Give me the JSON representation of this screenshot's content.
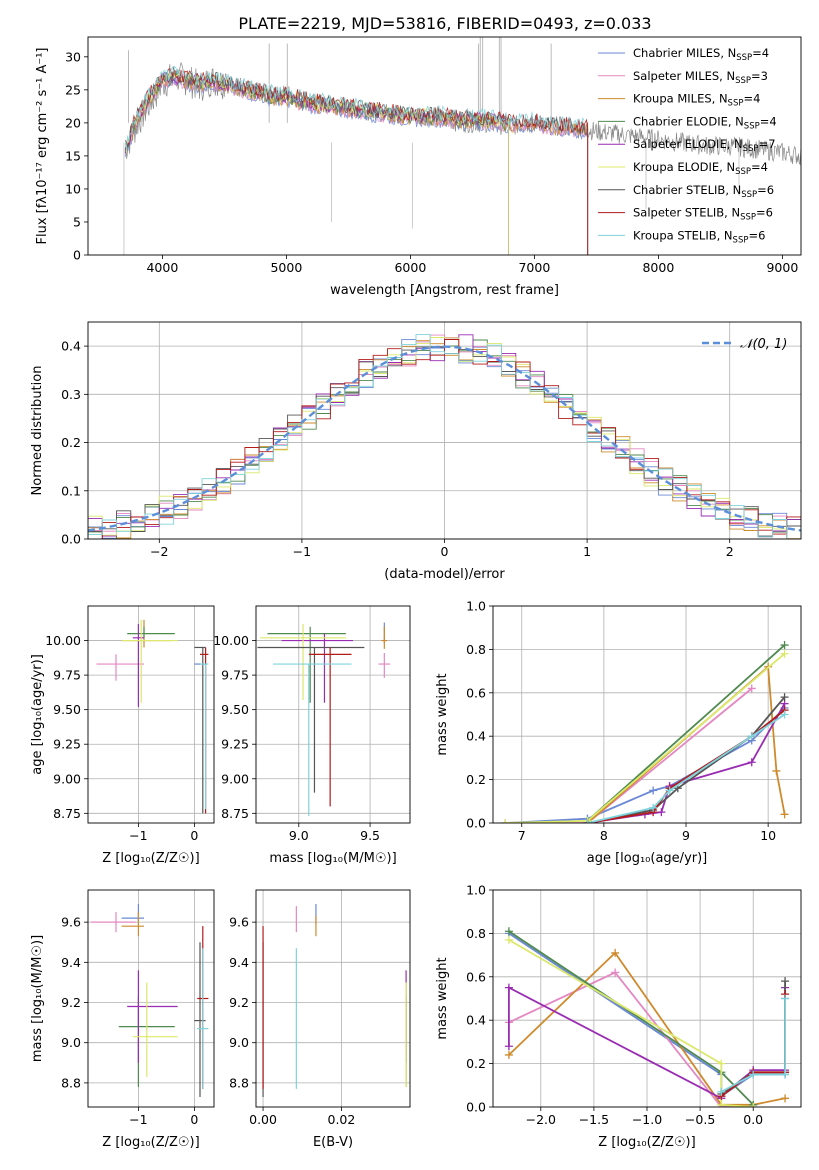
{
  "figure": {
    "title": "PLATE=2219, MJD=53816, FIBERID=0493, z=0.033"
  },
  "series": [
    {
      "name": "Chabrier MILES",
      "nssp": "4",
      "color": "#6a88d6"
    },
    {
      "name": "Salpeter MILES",
      "nssp": "3",
      "color": "#e487c2"
    },
    {
      "name": "Kroupa MILES",
      "nssp": "4",
      "color": "#cf8a2c"
    },
    {
      "name": "Chabrier ELODIE",
      "nssp": "4",
      "color": "#4f8a4f"
    },
    {
      "name": "Salpeter ELODIE",
      "nssp": "7",
      "color": "#9a2cb3"
    },
    {
      "name": "Kroupa ELODIE",
      "nssp": "4",
      "color": "#dbe86a"
    },
    {
      "name": "Chabrier STELIB",
      "nssp": "6",
      "color": "#555555"
    },
    {
      "name": "Salpeter STELIB",
      "nssp": "6",
      "color": "#b31b1b"
    },
    {
      "name": "Kroupa STELIB",
      "nssp": "6",
      "color": "#7fd3dc"
    }
  ],
  "chart_data": [
    {
      "id": "spectrum",
      "type": "line",
      "xlabel": "wavelength [Angstrom, rest frame]",
      "ylabel": "Flux [fλ10⁻¹⁷ erg cm⁻² s⁻¹ A⁻¹]",
      "xlim": [
        3400,
        9150
      ],
      "ylim": [
        0,
        33
      ],
      "xticks": [
        4000,
        5000,
        6000,
        7000,
        8000,
        9000
      ],
      "yticks": [
        0,
        5,
        10,
        15,
        20,
        25,
        30
      ],
      "data_wavelength": [
        3700,
        3800,
        3900,
        4000,
        4100,
        4200,
        4300,
        4400,
        4500,
        4600,
        4700,
        4800,
        4900,
        5000,
        5200,
        5400,
        5600,
        5800,
        6000,
        6200,
        6400,
        6600,
        6800,
        7000,
        7200,
        7400,
        7600,
        7800,
        8000,
        8200,
        8400,
        8600,
        8800,
        9000,
        9150
      ],
      "data_flux": [
        16,
        20,
        23,
        26,
        27,
        26.5,
        25.5,
        26.5,
        26,
        25.5,
        25,
        24.5,
        24,
        24.5,
        23,
        22.5,
        22,
        21.5,
        21,
        21,
        20,
        20,
        19.5,
        20,
        19.5,
        19,
        18.5,
        18,
        17.5,
        17,
        16.5,
        16.5,
        16,
        15.5,
        15
      ],
      "model_wavelength": [
        3700,
        3800,
        3900,
        4000,
        4100,
        4200,
        4300,
        4400,
        4500,
        4600,
        4700,
        4800,
        4900,
        5000,
        5200,
        5400,
        5600,
        5800,
        6000,
        6200,
        6400,
        6600,
        6800,
        7000,
        7200,
        7400
      ],
      "model_flux": [
        16,
        21,
        24,
        26.5,
        27,
        26.5,
        26,
        26.5,
        26,
        25.5,
        25,
        24.5,
        24,
        24,
        23,
        22.5,
        22,
        21.5,
        21,
        21,
        20.5,
        20.5,
        20,
        20,
        19.5,
        19
      ],
      "model_cutoffs": [
        7430,
        7430,
        7430,
        6790,
        6790,
        6790,
        7430,
        7430,
        9100
      ]
    },
    {
      "id": "residuals",
      "type": "histogram",
      "xlabel": "(data-model)/error",
      "ylabel": "Normed distribution",
      "xlim": [
        -2.5,
        2.5
      ],
      "ylim": [
        0,
        0.45
      ],
      "xticks": [
        -2,
        -1,
        0,
        1,
        2
      ],
      "yticks": [
        0.0,
        0.1,
        0.2,
        0.3,
        0.4
      ],
      "reference_label": "𝒩(0, 1)",
      "bin_width": 0.1
    },
    {
      "id": "age_vs_Z",
      "type": "errorbar",
      "xlabel": "Z [log₁₀(Z/Z☉)]",
      "ylabel": "age  [log₁₀(age/yr)]",
      "xlim": [
        -1.9,
        0.35
      ],
      "ylim": [
        8.68,
        10.25
      ],
      "xticks": [
        -1,
        0
      ],
      "yticks": [
        8.75,
        9.0,
        9.25,
        9.5,
        9.75,
        10.0
      ],
      "points": [
        {
          "s": 0,
          "x": 0.1,
          "y": 9.83,
          "xerr": [
            0.1,
            0.1
          ],
          "yerr": [
            0.0,
            0.0
          ]
        },
        {
          "s": 1,
          "x": -1.4,
          "y": 9.83,
          "xerr": [
            0.35,
            0.5
          ],
          "yerr": [
            0.12,
            0.07
          ]
        },
        {
          "s": 2,
          "x": -0.9,
          "y": 10.0,
          "xerr": [
            0.4,
            0.5
          ],
          "yerr": [
            0.05,
            0.15
          ]
        },
        {
          "s": 3,
          "x": -0.9,
          "y": 10.05,
          "xerr": [
            0.3,
            0.55
          ],
          "yerr": [
            0.03,
            0.05
          ]
        },
        {
          "s": 4,
          "x": -1.0,
          "y": 10.02,
          "xerr": [
            0.1,
            0.1
          ],
          "yerr": [
            0.5,
            0.1
          ]
        },
        {
          "s": 5,
          "x": -0.95,
          "y": 10.0,
          "xerr": [
            0.35,
            0.65
          ],
          "yerr": [
            0.45,
            0.15
          ]
        },
        {
          "s": 6,
          "x": 0.15,
          "y": 9.95,
          "xerr": [
            0.15,
            0.05
          ],
          "yerr": [
            1.2,
            0.0
          ]
        },
        {
          "s": 7,
          "x": 0.2,
          "y": 9.9,
          "xerr": [
            0.1,
            0.05
          ],
          "yerr": [
            1.15,
            0.05
          ]
        },
        {
          "s": 8,
          "x": 0.2,
          "y": 9.83,
          "xerr": [
            0.1,
            0.05
          ],
          "yerr": [
            1.05,
            0.0
          ]
        }
      ]
    },
    {
      "id": "age_vs_mass",
      "type": "errorbar",
      "xlabel": "mass [log₁₀(M/M☉)]",
      "ylabel": "",
      "xlim": [
        8.7,
        9.78
      ],
      "ylim": [
        8.68,
        10.25
      ],
      "xticks": [
        9.0,
        9.5
      ],
      "yticks": [
        8.75,
        9.0,
        9.25,
        9.5,
        9.75,
        10.0
      ],
      "points": [
        {
          "s": 0,
          "x": 9.6,
          "y": 10.08,
          "xerr": [
            0.0,
            0.0
          ],
          "yerr": [
            0.1,
            0.05
          ]
        },
        {
          "s": 1,
          "x": 9.6,
          "y": 9.83,
          "xerr": [
            0.04,
            0.04
          ],
          "yerr": [
            0.1,
            0.08
          ]
        },
        {
          "s": 2,
          "x": 9.6,
          "y": 10.0,
          "xerr": [
            0.02,
            0.02
          ],
          "yerr": [
            0.06,
            0.1
          ]
        },
        {
          "s": 3,
          "x": 9.08,
          "y": 10.05,
          "xerr": [
            0.3,
            0.25
          ],
          "yerr": [
            0.5,
            0.05
          ]
        },
        {
          "s": 4,
          "x": 9.18,
          "y": 10.0,
          "xerr": [
            0.3,
            0.2
          ],
          "yerr": [
            0.45,
            0.05
          ]
        },
        {
          "s": 5,
          "x": 9.03,
          "y": 10.02,
          "xerr": [
            0.3,
            0.3
          ],
          "yerr": [
            0.45,
            0.1
          ]
        },
        {
          "s": 6,
          "x": 9.11,
          "y": 9.95,
          "xerr": [
            0.4,
            0.35
          ],
          "yerr": [
            1.05,
            0.0
          ]
        },
        {
          "s": 7,
          "x": 9.22,
          "y": 9.9,
          "xerr": [
            0.15,
            0.15
          ],
          "yerr": [
            1.1,
            0.05
          ]
        },
        {
          "s": 8,
          "x": 9.07,
          "y": 9.83,
          "xerr": [
            0.25,
            0.3
          ],
          "yerr": [
            1.1,
            0.0
          ]
        }
      ]
    },
    {
      "id": "weight_vs_age",
      "type": "line",
      "xlabel": "age  [log₁₀(age/yr)]",
      "ylabel": "mass weight",
      "xlim": [
        6.65,
        10.4
      ],
      "ylim": [
        0,
        1.0
      ],
      "xticks": [
        7,
        8,
        9,
        10
      ],
      "yticks": [
        0.0,
        0.2,
        0.4,
        0.6,
        0.8,
        1.0
      ],
      "lines": [
        {
          "s": 0,
          "x": [
            6.8,
            7.8,
            8.6,
            8.8,
            9.8,
            10.2
          ],
          "y": [
            0.0,
            0.02,
            0.15,
            0.17,
            0.38,
            0.53
          ]
        },
        {
          "s": 1,
          "x": [
            6.8,
            7.8,
            9.8
          ],
          "y": [
            0.0,
            0.0,
            0.62
          ]
        },
        {
          "s": 2,
          "x": [
            7.8,
            10.0,
            10.1,
            10.2
          ],
          "y": [
            0.0,
            0.72,
            0.24,
            0.04
          ]
        },
        {
          "s": 3,
          "x": [
            7.8,
            10.2
          ],
          "y": [
            0.01,
            0.82
          ]
        },
        {
          "s": 4,
          "x": [
            7.8,
            8.5,
            8.7,
            8.8,
            9.8,
            10.2
          ],
          "y": [
            0.0,
            0.04,
            0.05,
            0.17,
            0.28,
            0.55
          ]
        },
        {
          "s": 5,
          "x": [
            6.8,
            7.8,
            10.2
          ],
          "y": [
            0.0,
            0.01,
            0.78
          ]
        },
        {
          "s": 6,
          "x": [
            7.8,
            8.6,
            8.9,
            9.8,
            10.2
          ],
          "y": [
            0.0,
            0.06,
            0.16,
            0.4,
            0.58
          ]
        },
        {
          "s": 7,
          "x": [
            7.8,
            8.6,
            8.8,
            9.8,
            10.2
          ],
          "y": [
            0.0,
            0.05,
            0.16,
            0.4,
            0.52
          ]
        },
        {
          "s": 8,
          "x": [
            7.8,
            8.6,
            8.8,
            9.8,
            10.2
          ],
          "y": [
            0.0,
            0.07,
            0.15,
            0.4,
            0.5
          ]
        }
      ]
    },
    {
      "id": "mass_vs_Z",
      "type": "errorbar",
      "xlabel": "Z [log₁₀(Z/Z☉)]",
      "ylabel": "mass [log₁₀(M/M☉)]",
      "xlim": [
        -1.9,
        0.35
      ],
      "ylim": [
        8.68,
        9.76
      ],
      "xticks": [
        -1,
        0
      ],
      "yticks": [
        8.8,
        9.0,
        9.2,
        9.4,
        9.6
      ],
      "points": [
        {
          "s": 0,
          "x": -1.0,
          "y": 9.62,
          "xerr": [
            0.3,
            0.1
          ],
          "yerr": [
            0.03,
            0.07
          ]
        },
        {
          "s": 1,
          "x": -1.4,
          "y": 9.6,
          "xerr": [
            0.45,
            0.35
          ],
          "yerr": [
            0.05,
            0.05
          ]
        },
        {
          "s": 2,
          "x": -1.0,
          "y": 9.58,
          "xerr": [
            0.3,
            0.1
          ],
          "yerr": [
            0.05,
            0.07
          ]
        },
        {
          "s": 3,
          "x": -1.0,
          "y": 9.08,
          "xerr": [
            0.35,
            0.65
          ],
          "yerr": [
            0.3,
            0.15
          ]
        },
        {
          "s": 4,
          "x": -1.0,
          "y": 9.18,
          "xerr": [
            0.2,
            0.7
          ],
          "yerr": [
            0.28,
            0.18
          ]
        },
        {
          "s": 5,
          "x": -0.85,
          "y": 9.03,
          "xerr": [
            0.25,
            0.55
          ],
          "yerr": [
            0.2,
            0.27
          ]
        },
        {
          "s": 6,
          "x": 0.1,
          "y": 9.11,
          "xerr": [
            0.1,
            0.1
          ],
          "yerr": [
            0.38,
            0.39
          ]
        },
        {
          "s": 7,
          "x": 0.15,
          "y": 9.22,
          "xerr": [
            0.1,
            0.1
          ],
          "yerr": [
            0.45,
            0.36
          ]
        },
        {
          "s": 8,
          "x": 0.15,
          "y": 9.07,
          "xerr": [
            0.1,
            0.1
          ],
          "yerr": [
            0.3,
            0.4
          ]
        }
      ]
    },
    {
      "id": "mass_vs_ebv",
      "type": "errorbar",
      "xlabel": "E(B-V)",
      "ylabel": "",
      "xlim": [
        -0.0018,
        0.0375
      ],
      "ylim": [
        8.68,
        9.76
      ],
      "xticks": [
        0.0,
        0.02
      ],
      "yticks": [
        8.8,
        9.0,
        9.2,
        9.4,
        9.6
      ],
      "points": [
        {
          "s": 0,
          "x": 0.0135,
          "y": 9.62,
          "xerr": [
            0,
            0
          ],
          "yerr": [
            0.03,
            0.07
          ]
        },
        {
          "s": 1,
          "x": 0.0085,
          "y": 9.6,
          "xerr": [
            0,
            0
          ],
          "yerr": [
            0.05,
            0.08
          ]
        },
        {
          "s": 2,
          "x": 0.0135,
          "y": 9.58,
          "xerr": [
            0,
            0
          ],
          "yerr": [
            0.05,
            0.05
          ]
        },
        {
          "s": 3,
          "x": 0.0365,
          "y": 9.08,
          "xerr": [
            0,
            0
          ],
          "yerr": [
            0.3,
            0.15
          ]
        },
        {
          "s": 4,
          "x": 0.0365,
          "y": 9.18,
          "xerr": [
            0,
            0
          ],
          "yerr": [
            0.28,
            0.18
          ]
        },
        {
          "s": 5,
          "x": 0.0365,
          "y": 9.03,
          "xerr": [
            0,
            0
          ],
          "yerr": [
            0.25,
            0.27
          ]
        },
        {
          "s": 6,
          "x": 0.0,
          "y": 9.11,
          "xerr": [
            0,
            0
          ],
          "yerr": [
            0.38,
            0.39
          ]
        },
        {
          "s": 7,
          "x": 0.0,
          "y": 9.22,
          "xerr": [
            0,
            0
          ],
          "yerr": [
            0.45,
            0.36
          ]
        },
        {
          "s": 8,
          "x": 0.0085,
          "y": 9.07,
          "xerr": [
            0,
            0
          ],
          "yerr": [
            0.3,
            0.4
          ]
        }
      ]
    },
    {
      "id": "weight_vs_Z",
      "type": "line",
      "xlabel": "Z [log₁₀(Z/Z☉)]",
      "ylabel": "mass weight",
      "xlim": [
        -2.45,
        0.45
      ],
      "ylim": [
        0,
        1.0
      ],
      "xticks": [
        -2.0,
        -1.5,
        -1.0,
        -0.5,
        0.0
      ],
      "yticks": [
        0.0,
        0.2,
        0.4,
        0.6,
        0.8,
        1.0
      ],
      "lines": [
        {
          "s": 0,
          "x": [
            -2.3,
            -0.3,
            -0.3,
            0.0,
            0.3,
            0.3
          ],
          "y": [
            0.8,
            0.15,
            0.05,
            0.15,
            0.15,
            0.5
          ]
        },
        {
          "s": 1,
          "x": [
            -2.3,
            -1.3,
            -0.3,
            0.0
          ],
          "y": [
            0.39,
            0.62,
            0.0,
            0.0
          ]
        },
        {
          "s": 2,
          "x": [
            -2.3,
            -1.3,
            -0.3,
            0.0,
            0.3
          ],
          "y": [
            0.24,
            0.71,
            0.01,
            0.01,
            0.04
          ]
        },
        {
          "s": 3,
          "x": [
            -2.3,
            -0.3,
            0.0
          ],
          "y": [
            0.81,
            0.16,
            0.01
          ]
        },
        {
          "s": 4,
          "x": [
            -2.3,
            -2.3,
            -0.3,
            -0.3,
            0.0,
            0.3,
            0.3
          ],
          "y": [
            0.28,
            0.55,
            0.04,
            0.05,
            0.17,
            0.17,
            0.55
          ]
        },
        {
          "s": 5,
          "x": [
            -2.3,
            -0.3,
            -0.3,
            0.0
          ],
          "y": [
            0.77,
            0.2,
            0.01,
            0.0
          ]
        },
        {
          "s": 6,
          "x": [
            -0.3,
            0.0,
            0.3,
            0.3
          ],
          "y": [
            0.06,
            0.16,
            0.16,
            0.58
          ]
        },
        {
          "s": 7,
          "x": [
            -0.3,
            0.0,
            0.3,
            0.3
          ],
          "y": [
            0.05,
            0.16,
            0.16,
            0.52
          ]
        },
        {
          "s": 8,
          "x": [
            -0.3,
            0.0,
            0.3,
            0.3
          ],
          "y": [
            0.07,
            0.15,
            0.15,
            0.5
          ]
        }
      ]
    }
  ]
}
